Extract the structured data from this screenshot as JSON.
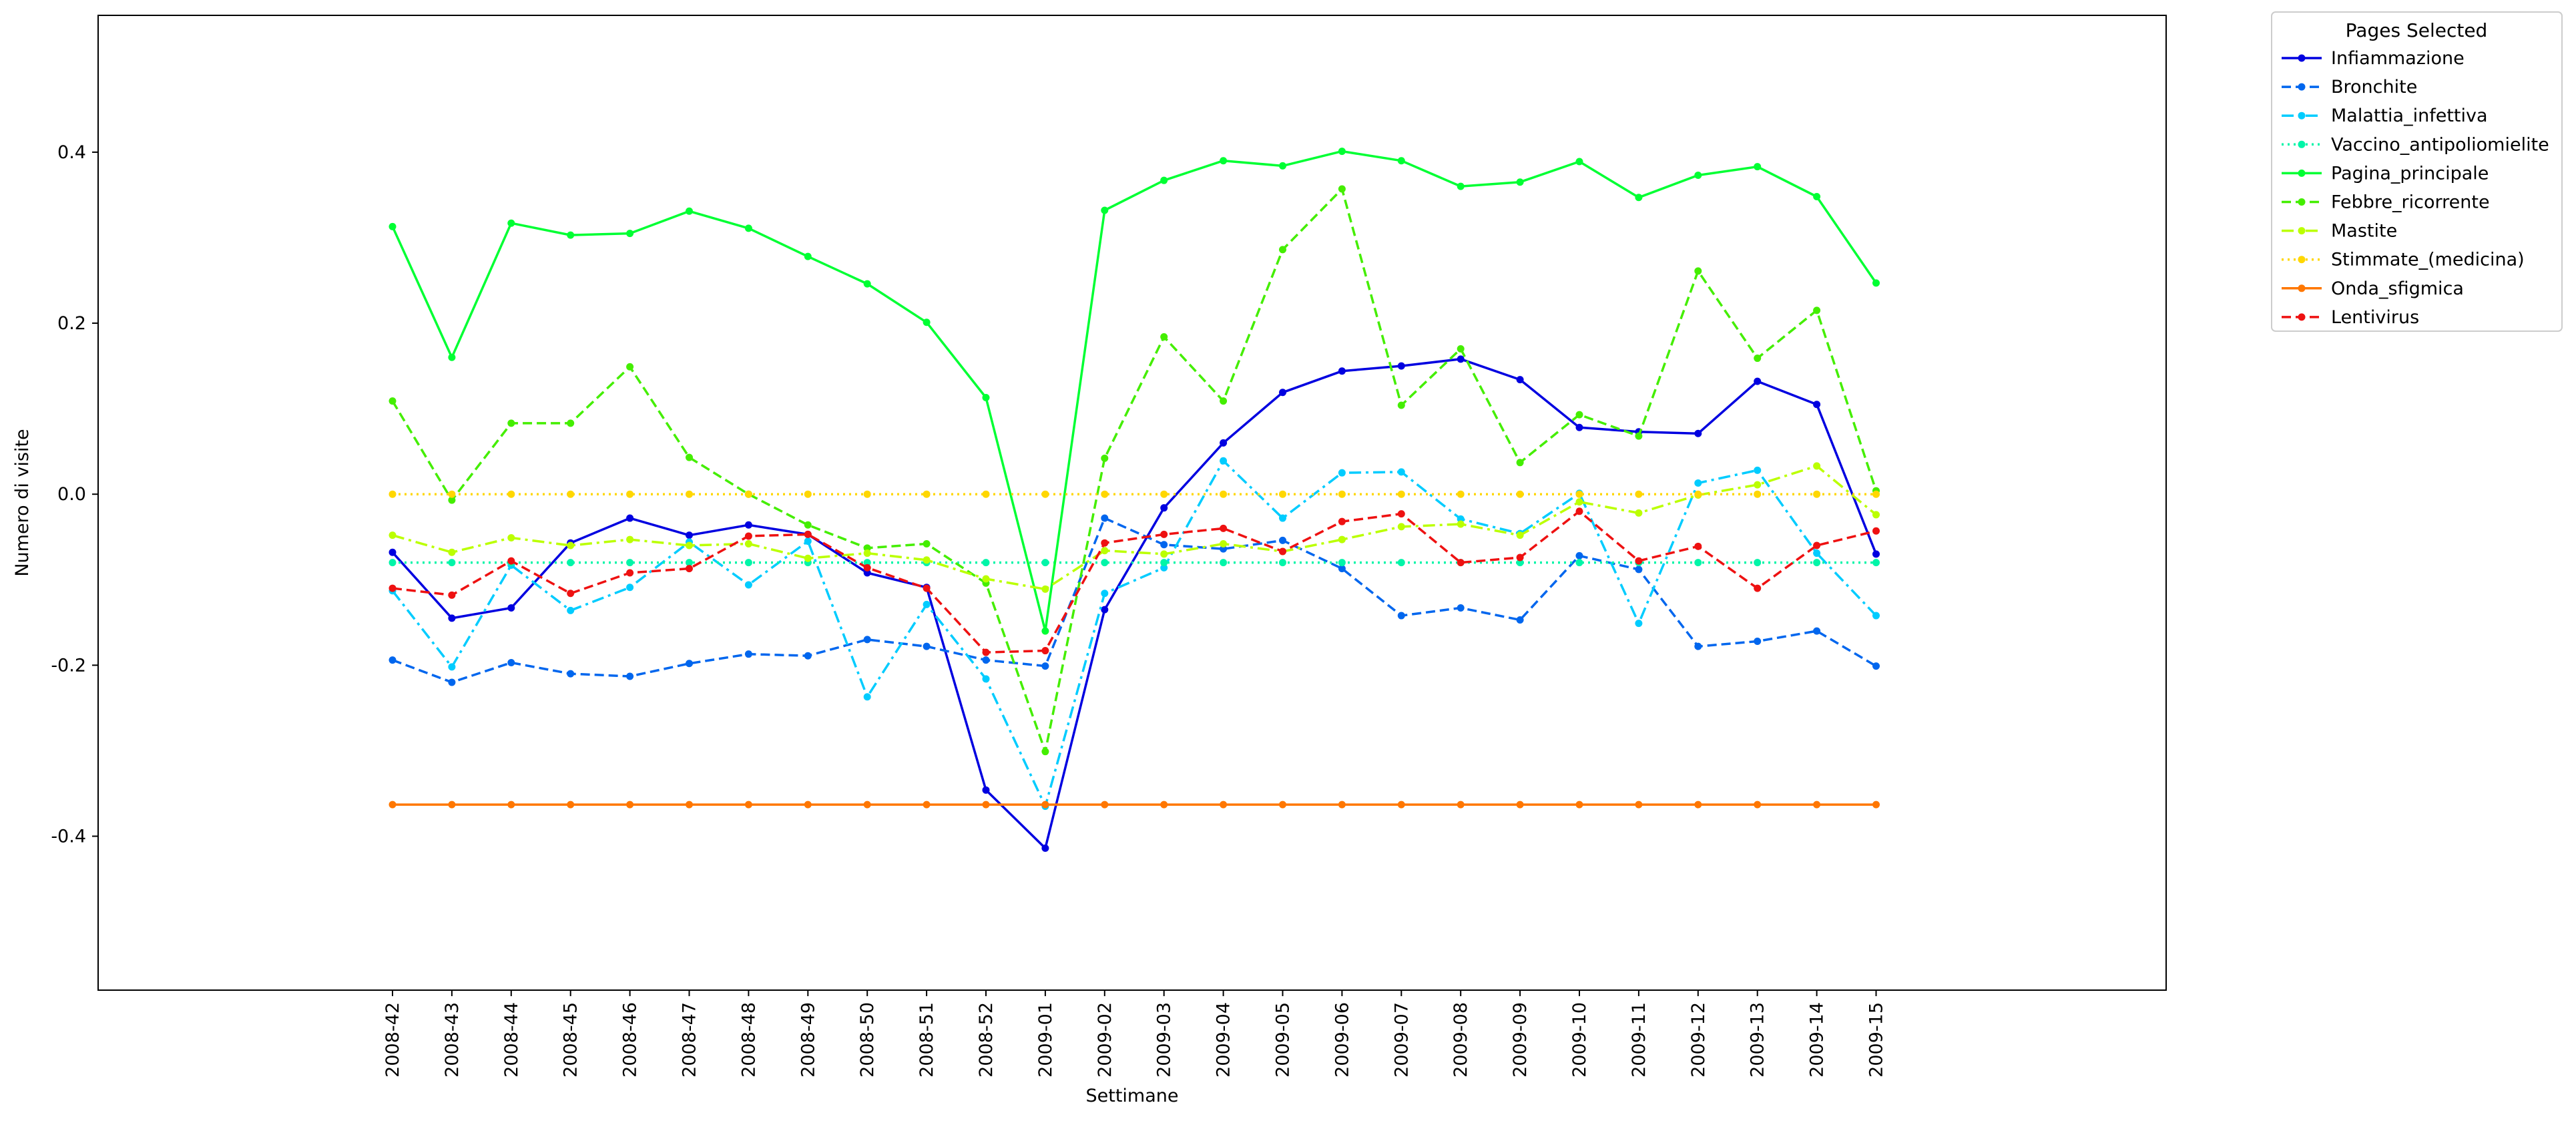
{
  "chart_data": {
    "type": "line",
    "xlabel": "Settimane",
    "ylabel": "Numero di visite",
    "ylim": [
      -0.58,
      0.56
    ],
    "yticks": [
      "-0.4",
      "-0.2",
      "0.0",
      "0.2",
      "0.4"
    ],
    "ytick_values": [
      -0.4,
      -0.2,
      0.0,
      0.2,
      0.4
    ],
    "x": [
      "2008-42",
      "2008-43",
      "2008-44",
      "2008-45",
      "2008-46",
      "2008-47",
      "2008-48",
      "2008-49",
      "2008-50",
      "2008-51",
      "2008-52",
      "2009-01",
      "2009-02",
      "2009-03",
      "2009-04",
      "2009-05",
      "2009-06",
      "2009-07",
      "2009-08",
      "2009-09",
      "2009-10",
      "2009-11",
      "2009-12",
      "2009-13",
      "2009-14",
      "2009-15"
    ],
    "grid": false,
    "legend": {
      "title": "Pages Selected",
      "placement": "outside-top-right"
    },
    "series": [
      {
        "name": "Infiammazione",
        "color": "#0000e0",
        "dash": "solid",
        "values": [
          -0.068,
          -0.145,
          -0.133,
          -0.057,
          -0.028,
          -0.048,
          -0.036,
          -0.047,
          -0.092,
          -0.109,
          -0.346,
          -0.414,
          -0.135,
          -0.016,
          0.06,
          0.119,
          0.144,
          0.15,
          0.158,
          0.134,
          0.078,
          0.073,
          0.071,
          0.132,
          0.105,
          -0.07
        ]
      },
      {
        "name": "Bronchite",
        "color": "#0066ee",
        "dash": "dashed",
        "values": [
          -0.194,
          -0.22,
          -0.197,
          -0.21,
          -0.213,
          -0.198,
          -0.187,
          -0.189,
          -0.17,
          -0.178,
          -0.194,
          -0.201,
          -0.028,
          -0.059,
          -0.064,
          -0.054,
          -0.087,
          -0.142,
          -0.133,
          -0.147,
          -0.072,
          -0.088,
          -0.178,
          -0.172,
          -0.16,
          -0.201
        ]
      },
      {
        "name": "Malattia_infettiva",
        "color": "#00ccff",
        "dash": "dashdot",
        "values": [
          -0.113,
          -0.202,
          -0.083,
          -0.136,
          -0.109,
          -0.056,
          -0.106,
          -0.055,
          -0.237,
          -0.129,
          -0.216,
          -0.365,
          -0.116,
          -0.086,
          0.039,
          -0.028,
          0.025,
          0.026,
          -0.029,
          -0.046,
          0.001,
          -0.151,
          0.013,
          0.028,
          -0.069,
          -0.142
        ]
      },
      {
        "name": "Vaccino_antipoliomielite",
        "color": "#00f5a8",
        "dash": "dotted",
        "values": [
          -0.08,
          -0.08,
          -0.08,
          -0.08,
          -0.08,
          -0.08,
          -0.08,
          -0.08,
          -0.08,
          -0.08,
          -0.08,
          -0.08,
          -0.08,
          -0.08,
          -0.08,
          -0.08,
          -0.08,
          -0.08,
          -0.08,
          -0.08,
          -0.08,
          -0.08,
          -0.08,
          -0.08,
          -0.08,
          -0.08
        ]
      },
      {
        "name": "Pagina_principale",
        "color": "#00ff33",
        "dash": "solid",
        "values": [
          0.313,
          0.16,
          0.317,
          0.303,
          0.305,
          0.331,
          0.311,
          0.278,
          0.246,
          0.201,
          0.113,
          -0.16,
          0.332,
          0.367,
          0.39,
          0.384,
          0.401,
          0.39,
          0.36,
          0.365,
          0.389,
          0.347,
          0.373,
          0.383,
          0.348,
          0.247
        ]
      },
      {
        "name": "Febbre_ricorrente",
        "color": "#44ee00",
        "dash": "dashed",
        "values": [
          0.109,
          -0.007,
          0.083,
          0.083,
          0.149,
          0.043,
          0.0,
          -0.036,
          -0.063,
          -0.058,
          -0.104,
          -0.301,
          0.042,
          0.184,
          0.109,
          0.286,
          0.357,
          0.104,
          0.17,
          0.037,
          0.093,
          0.068,
          0.261,
          0.159,
          0.215,
          0.004
        ]
      },
      {
        "name": "Mastite",
        "color": "#bbff00",
        "dash": "dashdot",
        "values": [
          -0.048,
          -0.068,
          -0.051,
          -0.06,
          -0.053,
          -0.06,
          -0.058,
          -0.075,
          -0.069,
          -0.077,
          -0.099,
          -0.111,
          -0.066,
          -0.07,
          -0.058,
          -0.067,
          -0.053,
          -0.038,
          -0.035,
          -0.048,
          -0.009,
          -0.022,
          -0.001,
          0.011,
          0.033,
          -0.024
        ]
      },
      {
        "name": "Stimmate_(medicina)",
        "color": "#ffd700",
        "dash": "dotted",
        "values": [
          0.0,
          0.0,
          0.0,
          0.0,
          0.0,
          0.0,
          0.0,
          0.0,
          0.0,
          0.0,
          0.0,
          0.0,
          0.0,
          0.0,
          0.0,
          0.0,
          0.0,
          0.0,
          0.0,
          0.0,
          0.0,
          0.0,
          0.0,
          0.0,
          0.0,
          0.0
        ]
      },
      {
        "name": "Onda_sfigmica",
        "color": "#ff7700",
        "dash": "solid",
        "values": [
          -0.363,
          -0.363,
          -0.363,
          -0.363,
          -0.363,
          -0.363,
          -0.363,
          -0.363,
          -0.363,
          -0.363,
          -0.363,
          -0.363,
          -0.363,
          -0.363,
          -0.363,
          -0.363,
          -0.363,
          -0.363,
          -0.363,
          -0.363,
          -0.363,
          -0.363,
          -0.363,
          -0.363,
          -0.363,
          -0.363
        ]
      },
      {
        "name": "Lentivirus",
        "color": "#ee1111",
        "dash": "dashed",
        "values": [
          -0.11,
          -0.118,
          -0.078,
          -0.116,
          -0.092,
          -0.087,
          -0.049,
          -0.047,
          -0.086,
          -0.11,
          -0.185,
          -0.183,
          -0.057,
          -0.047,
          -0.04,
          -0.067,
          -0.032,
          -0.023,
          -0.08,
          -0.074,
          -0.02,
          -0.078,
          -0.061,
          -0.11,
          -0.06,
          -0.043
        ]
      }
    ]
  }
}
